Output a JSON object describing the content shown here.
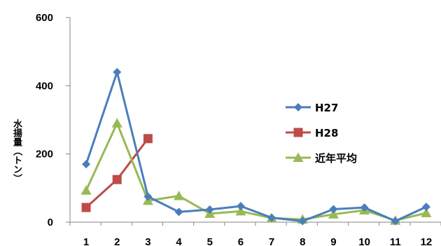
{
  "chart_data": {
    "type": "line",
    "title": "",
    "xlabel": "",
    "ylabel": "水揚量（トン）",
    "categories": [
      "1",
      "2",
      "3",
      "4",
      "5",
      "6",
      "7",
      "8",
      "9",
      "10",
      "11",
      "12"
    ],
    "ylim": [
      0,
      600
    ],
    "yticks": [
      0,
      200,
      400,
      600
    ],
    "grid": false,
    "legend_position": "right",
    "series": [
      {
        "name": "H27",
        "color": "#4a7ebb",
        "marker": "diamond",
        "values": [
          170,
          440,
          75,
          30,
          37,
          47,
          13,
          3,
          38,
          43,
          3,
          45
        ]
      },
      {
        "name": "H28",
        "color": "#be4b48",
        "marker": "square",
        "values": [
          43,
          125,
          245,
          null,
          null,
          null,
          null,
          null,
          null,
          null,
          null,
          null
        ]
      },
      {
        "name": "近年平均",
        "color": "#98b954",
        "marker": "triangle",
        "values": [
          93,
          290,
          63,
          77,
          25,
          32,
          12,
          8,
          23,
          35,
          5,
          27
        ]
      }
    ]
  }
}
